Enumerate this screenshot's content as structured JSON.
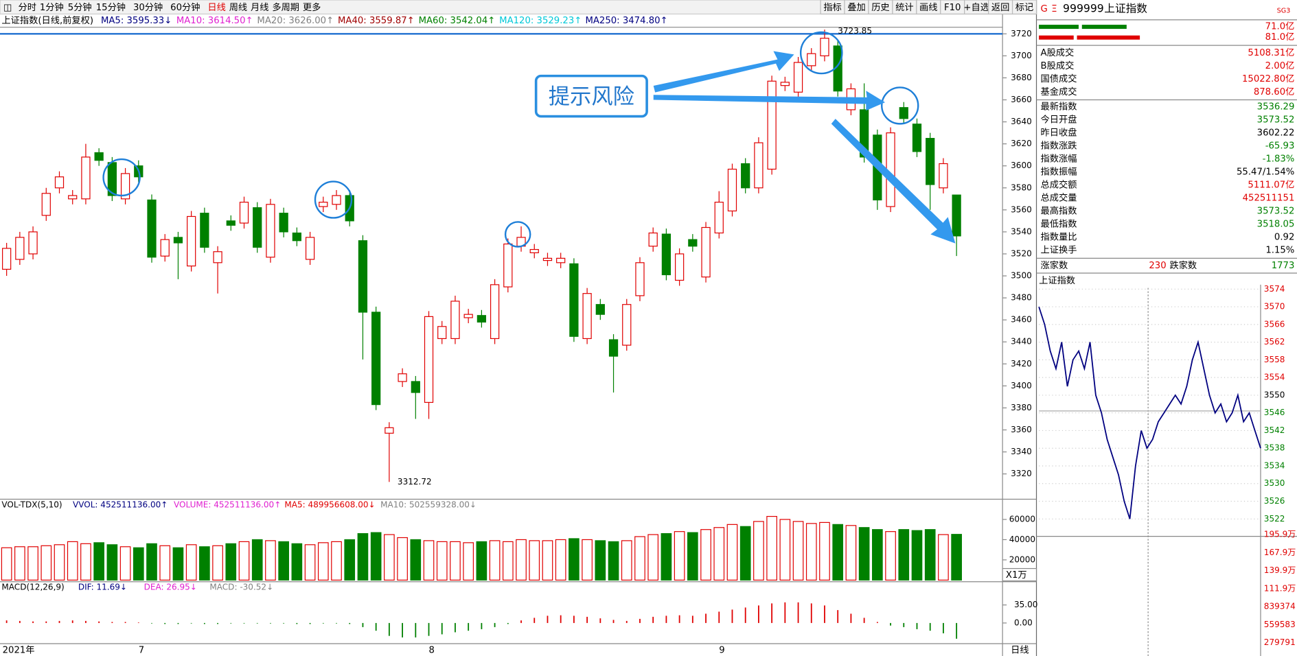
{
  "toolbar": {
    "periods": [
      "分时",
      "1分钟",
      "5分钟",
      "15分钟",
      "30分钟",
      "60分钟",
      "日线",
      "周线",
      "月线",
      "多周期",
      "更多"
    ],
    "buttons": [
      "指标",
      "叠加",
      "历史",
      "统计",
      "画线",
      "F10",
      "+自选",
      "返回",
      "标记"
    ]
  },
  "main_chart": {
    "title": "上证指数(日线,前复权)",
    "ma_legend": [
      {
        "label": "MA5: 3595.33↓",
        "color": "#000080"
      },
      {
        "label": "MA10: 3614.50↑",
        "color": "#e020d0"
      },
      {
        "label": "MA20: 3626.00↑",
        "color": "#808080"
      },
      {
        "label": "MA40: 3559.87↑",
        "color": "#a00000"
      },
      {
        "label": "MA60: 3542.04↑",
        "color": "#008000"
      },
      {
        "label": "MA120: 3529.23↑",
        "color": "#00c8d8"
      },
      {
        "label": "MA250: 3474.80↑",
        "color": "#000080"
      }
    ],
    "ylim": [
      3297,
      3726
    ],
    "yticks": [
      3320,
      3340,
      3360,
      3380,
      3400,
      3420,
      3440,
      3460,
      3480,
      3500,
      3520,
      3540,
      3560,
      3580,
      3600,
      3620,
      3640,
      3660,
      3680,
      3700,
      3720
    ],
    "up_color": "#e00000",
    "down_color": "#008000",
    "open": [
      3506,
      3515,
      3520,
      3555,
      3580,
      3570,
      3570,
      3612,
      3603,
      3570,
      3600,
      3569,
      3518,
      3535,
      3509,
      3557,
      3512,
      3550,
      3548,
      3562,
      3517,
      3557,
      3539,
      3515,
      3563,
      3565,
      3573,
      3532,
      3467,
      3357,
      3404,
      3404,
      3385,
      3443,
      3443,
      3462,
      3464,
      3443,
      3490,
      3527,
      3521,
      3514,
      3512,
      3511,
      3443,
      3474,
      3442,
      3437,
      3482,
      3527,
      3538,
      3496,
      3533,
      3499,
      3539,
      3559,
      3602,
      3580,
      3597,
      3673,
      3667,
      3691,
      3700,
      3709,
      3651,
      3651,
      3628,
      3563,
      3653,
      3638,
      3625,
      3580,
      3573.52
    ],
    "high": [
      3530,
      3540,
      3545,
      3580,
      3595,
      3578,
      3620,
      3616,
      3608,
      3598,
      3605,
      3574,
      3538,
      3540,
      3559,
      3562,
      3527,
      3555,
      3572,
      3567,
      3570,
      3562,
      3544,
      3540,
      3572,
      3578,
      3578,
      3537,
      3472,
      3367,
      3416,
      3409,
      3468,
      3459,
      3482,
      3470,
      3469,
      3497,
      3534,
      3545,
      3529,
      3521,
      3521,
      3516,
      3489,
      3479,
      3447,
      3479,
      3517,
      3544,
      3543,
      3525,
      3538,
      3549,
      3577,
      3602,
      3607,
      3626,
      3682,
      3681,
      3699,
      3707,
      3723.85,
      3714,
      3675,
      3675,
      3633,
      3635,
      3658,
      3643,
      3630,
      3607,
      3573.52
    ],
    "low": [
      3500,
      3510,
      3515,
      3550,
      3575,
      3565,
      3565,
      3600,
      3568,
      3565,
      3585,
      3512,
      3513,
      3497,
      3504,
      3521,
      3484,
      3541,
      3543,
      3521,
      3512,
      3535,
      3527,
      3510,
      3558,
      3560,
      3545,
      3424,
      3378,
      3312.72,
      3399,
      3370,
      3370,
      3438,
      3438,
      3457,
      3453,
      3438,
      3485,
      3522,
      3516,
      3509,
      3507,
      3440,
      3438,
      3460,
      3394,
      3432,
      3477,
      3522,
      3496,
      3491,
      3522,
      3494,
      3534,
      3554,
      3575,
      3575,
      3592,
      3668,
      3662,
      3686,
      3695,
      3663,
      3646,
      3603,
      3560,
      3558,
      3638,
      3608,
      3560,
      3575,
      3518.05
    ],
    "close": [
      3525,
      3535,
      3540,
      3575,
      3590,
      3573,
      3608,
      3605,
      3573,
      3593,
      3590,
      3517,
      3533,
      3530,
      3554,
      3526,
      3522,
      3546,
      3567,
      3526,
      3565,
      3540,
      3532,
      3535,
      3567,
      3573,
      3550,
      3467,
      3383,
      3362,
      3411,
      3394,
      3463,
      3454,
      3477,
      3465,
      3458,
      3492,
      3529,
      3535,
      3524,
      3516,
      3516,
      3445,
      3484,
      3465,
      3427,
      3474,
      3512,
      3539,
      3501,
      3520,
      3527,
      3544,
      3567,
      3597,
      3580,
      3621,
      3677,
      3676,
      3694,
      3702,
      3716,
      3668,
      3670,
      3608,
      3569,
      3630,
      3643,
      3613,
      3583,
      3602,
      3536.29
    ],
    "annotation": "提示风险",
    "year_label": "2021年",
    "dates": [
      null,
      null,
      null,
      null,
      null,
      null,
      null,
      null,
      null,
      null,
      "7",
      null,
      null,
      null,
      null,
      null,
      null,
      null,
      null,
      null,
      null,
      null,
      null,
      null,
      null,
      null,
      null,
      null,
      null,
      null,
      null,
      null,
      "8",
      null,
      null,
      null,
      null,
      null,
      null,
      null,
      null,
      null,
      null,
      null,
      null,
      null,
      null,
      null,
      null,
      null,
      null,
      null,
      null,
      null,
      "9",
      null,
      null,
      null,
      null,
      null,
      null,
      null,
      null,
      null,
      null,
      null,
      null,
      null,
      null,
      null,
      null,
      null,
      null
    ],
    "period_tab": "日线"
  },
  "volume": {
    "header": [
      {
        "label": "VOL-TDX(5,10)",
        "color": "#000"
      },
      {
        "label": "VVOL: 452511136.00↑",
        "color": "#000080"
      },
      {
        "label": "VOLUME: 452511136.00↑",
        "color": "#e020d0"
      },
      {
        "label": "MA5: 489956608.00↓",
        "color": "#e00000"
      },
      {
        "label": "MA10: 502559328.00↓",
        "color": "#808080"
      }
    ],
    "unit": "X1万",
    "ylim": [
      0,
      80000
    ],
    "yticks": [
      20000,
      40000,
      60000
    ],
    "values": [
      32000,
      33000,
      33000,
      34000,
      35000,
      38000,
      36000,
      37000,
      35000,
      33000,
      32000,
      36000,
      34000,
      32000,
      35000,
      33000,
      34000,
      36000,
      38000,
      40000,
      39000,
      38000,
      36000,
      35000,
      37000,
      38000,
      40000,
      46000,
      47000,
      45000,
      42000,
      40000,
      39000,
      38000,
      38000,
      37000,
      38000,
      39000,
      38000,
      40000,
      39000,
      39000,
      40000,
      41000,
      40000,
      39000,
      38000,
      39000,
      43000,
      45000,
      46000,
      48000,
      47000,
      50000,
      52000,
      55000,
      53000,
      58000,
      63000,
      60000,
      58000,
      56000,
      57000,
      55000,
      54000,
      52000,
      50000,
      48000,
      50000,
      49000,
      50000,
      45000,
      45251.1136
    ]
  },
  "macd": {
    "header": [
      {
        "label": "MACD(12,26,9)",
        "color": "#000"
      },
      {
        "label": "DIF: 11.69↓",
        "color": "#000080"
      },
      {
        "label": "DEA: 26.95↓",
        "color": "#e020d0"
      },
      {
        "label": "MACD: -30.52↓",
        "color": "#808080"
      }
    ],
    "ylim": [
      -40,
      80
    ],
    "yticks": [
      {
        "value": 0,
        "label": "0.00"
      },
      {
        "value": 35,
        "label": "35.00"
      }
    ],
    "values": [
      5,
      4,
      3,
      3,
      4,
      5,
      4,
      3,
      2,
      2,
      1,
      -1,
      -2,
      -2,
      -1,
      -2,
      -2,
      -1,
      -1,
      -1,
      -1,
      -1,
      -2,
      -2,
      -1,
      -1,
      -2,
      -8,
      -15,
      -25,
      -28,
      -28,
      -25,
      -22,
      -18,
      -15,
      -12,
      -8,
      -2,
      5,
      10,
      14,
      15,
      14,
      12,
      9,
      6,
      4,
      8,
      12,
      14,
      15,
      14,
      18,
      22,
      26,
      30,
      34,
      38,
      40,
      40,
      38,
      34,
      25,
      18,
      10,
      2,
      -5,
      -8,
      -12,
      -15,
      -20,
      -30.52
    ]
  },
  "quote": {
    "code": "999999",
    "name": "上证指数",
    "badge": "SG3",
    "bars": [
      "71.0亿",
      "81.0亿"
    ],
    "rows": [
      {
        "label": "A股成交",
        "value": "5108.31亿",
        "color": "#e00000"
      },
      {
        "label": "B股成交",
        "value": "2.00亿",
        "color": "#e00000"
      },
      {
        "label": "国债成交",
        "value": "15022.80亿",
        "color": "#e00000"
      },
      {
        "label": "基金成交",
        "value": "878.60亿",
        "color": "#e00000"
      },
      {
        "label": "最新指数",
        "value": "3536.29",
        "color": "#008000"
      },
      {
        "label": "今日开盘",
        "value": "3573.52",
        "color": "#008000"
      },
      {
        "label": "昨日收盘",
        "value": "3602.22",
        "color": "#000"
      },
      {
        "label": "指数涨跌",
        "value": "-65.93",
        "color": "#008000"
      },
      {
        "label": "指数涨幅",
        "value": "-1.83%",
        "color": "#008000"
      },
      {
        "label": "指数振幅",
        "value": "55.47/1.54%",
        "color": "#000"
      },
      {
        "label": "总成交额",
        "value": "5111.07亿",
        "color": "#e00000"
      },
      {
        "label": "总成交量",
        "value": "452511151",
        "color": "#e00000"
      },
      {
        "label": "最高指数",
        "value": "3573.52",
        "color": "#008000"
      },
      {
        "label": "最低指数",
        "value": "3518.05",
        "color": "#008000"
      },
      {
        "label": "指数量比",
        "value": "0.92",
        "color": "#000"
      },
      {
        "label": "上证换手",
        "value": "1.15%",
        "color": "#000"
      }
    ],
    "breadth": {
      "up_label": "涨家数",
      "up": "230",
      "down_label": "跌家数",
      "down": "1773"
    }
  },
  "intraday": {
    "title": "上证指数",
    "ylim": [
      3519,
      3575
    ],
    "yticks": [
      3574,
      3570,
      3566,
      3562,
      3558,
      3554,
      3550,
      3546,
      3542,
      3538,
      3534,
      3530,
      3526,
      3522
    ],
    "prices": [
      3570,
      3566,
      3560,
      3556,
      3562,
      3552,
      3558,
      3560,
      3556,
      3562,
      3550,
      3546,
      3540,
      3536,
      3532,
      3526,
      3522,
      3534,
      3542,
      3538,
      3540,
      3544,
      3546,
      3548,
      3550,
      3548,
      3552,
      3558,
      3562,
      3556,
      3550,
      3546,
      3548,
      3544,
      3546,
      3550,
      3544,
      3546,
      3542,
      3538
    ],
    "volume_ticks": [
      "195.9万",
      "167.9万",
      "139.9万",
      "111.9万",
      "839374",
      "559583",
      "279791"
    ]
  }
}
